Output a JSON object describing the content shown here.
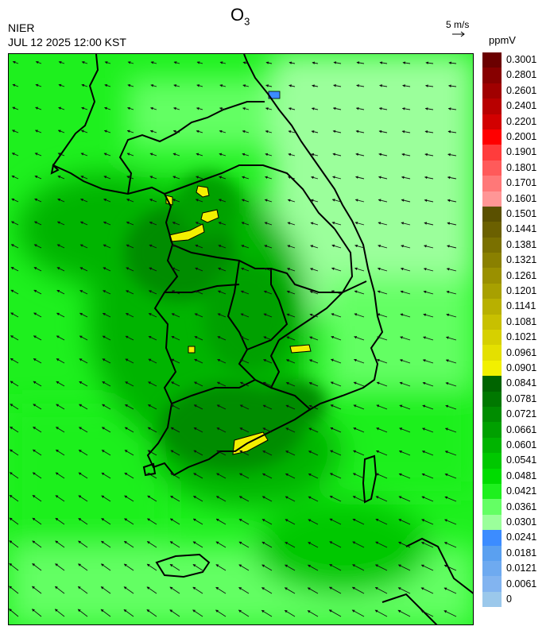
{
  "header": {
    "agency": "NIER",
    "timestamp": "JUL 12 2025 12:00 KST",
    "title_main": "O",
    "title_sub": "3",
    "wind_reference": "5 m/s",
    "unit": "ppmV"
  },
  "legend": {
    "levels": [
      {
        "label": "0.3001",
        "color": "#6b0000"
      },
      {
        "label": "0.2801",
        "color": "#870000"
      },
      {
        "label": "0.2601",
        "color": "#a00000"
      },
      {
        "label": "0.2401",
        "color": "#b80000"
      },
      {
        "label": "0.2201",
        "color": "#d20000"
      },
      {
        "label": "0.2001",
        "color": "#ff0000"
      },
      {
        "label": "0.1901",
        "color": "#ff3c3c"
      },
      {
        "label": "0.1801",
        "color": "#ff5a5a"
      },
      {
        "label": "0.1701",
        "color": "#ff7878"
      },
      {
        "label": "0.1601",
        "color": "#ff9696"
      },
      {
        "label": "0.1501",
        "color": "#5a5000"
      },
      {
        "label": "0.1441",
        "color": "#6b6000"
      },
      {
        "label": "0.1381",
        "color": "#7a7000"
      },
      {
        "label": "0.1321",
        "color": "#8a8000"
      },
      {
        "label": "0.1261",
        "color": "#9a9000"
      },
      {
        "label": "0.1201",
        "color": "#a8a000"
      },
      {
        "label": "0.1141",
        "color": "#b8b000"
      },
      {
        "label": "0.1081",
        "color": "#c8c000"
      },
      {
        "label": "0.1021",
        "color": "#d6d000"
      },
      {
        "label": "0.0961",
        "color": "#e4e000"
      },
      {
        "label": "0.0901",
        "color": "#f2f000"
      },
      {
        "label": "0.0841",
        "color": "#006400"
      },
      {
        "label": "0.0781",
        "color": "#007800"
      },
      {
        "label": "0.0721",
        "color": "#008c00"
      },
      {
        "label": "0.0661",
        "color": "#00a000"
      },
      {
        "label": "0.0601",
        "color": "#00b400"
      },
      {
        "label": "0.0541",
        "color": "#00c800"
      },
      {
        "label": "0.0481",
        "color": "#00dc00"
      },
      {
        "label": "0.0421",
        "color": "#1ef01e"
      },
      {
        "label": "0.0361",
        "color": "#64ff64"
      },
      {
        "label": "0.0301",
        "color": "#9bff9b"
      },
      {
        "label": "0.0241",
        "color": "#3c8cff"
      },
      {
        "label": "0.0181",
        "color": "#5aa0f0"
      },
      {
        "label": "0.0121",
        "color": "#6eaaf0"
      },
      {
        "label": "0.0061",
        "color": "#82b4f0"
      },
      {
        "label": "0",
        "color": "#9bc8eb"
      }
    ]
  }
}
